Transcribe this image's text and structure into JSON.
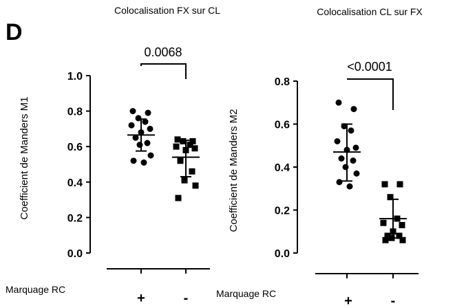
{
  "panel_letter": "D",
  "chart_data": [
    {
      "type": "scatter",
      "title": "Colocalisation FX sur CL",
      "ylabel": "Coefficient de Manders M1",
      "ylim": [
        0.0,
        1.0
      ],
      "yticks": [
        0.0,
        0.2,
        0.4,
        0.6,
        0.8,
        1.0
      ],
      "ytick_labels": [
        "0.0",
        "0.2",
        "0.4",
        "0.6",
        "0.8",
        "1.0"
      ],
      "row_label": "Marquage RC",
      "categories": [
        "+",
        "-"
      ],
      "p_value": "0.0068",
      "groups": [
        {
          "category": "+",
          "marker": "circle",
          "mean": 0.665,
          "sd_low": 0.575,
          "sd_high": 0.755,
          "values": [
            0.8,
            0.79,
            0.76,
            0.74,
            0.72,
            0.7,
            0.68,
            0.65,
            0.62,
            0.61,
            0.55,
            0.52,
            0.51
          ]
        },
        {
          "category": "-",
          "marker": "square",
          "mean": 0.54,
          "sd_low": 0.43,
          "sd_high": 0.635,
          "values": [
            0.64,
            0.63,
            0.63,
            0.61,
            0.6,
            0.59,
            0.58,
            0.52,
            0.46,
            0.41,
            0.38,
            0.31
          ]
        }
      ]
    },
    {
      "type": "scatter",
      "title": "Colocalisation CL sur FX",
      "ylabel": "Coefficient de Manders M2",
      "ylim": [
        0.0,
        0.8
      ],
      "yticks": [
        0.0,
        0.2,
        0.4,
        0.6,
        0.8
      ],
      "ytick_labels": [
        "0.0",
        "0.2",
        "0.4",
        "0.6",
        "0.8"
      ],
      "row_label": "Marquage RC",
      "categories": [
        "+",
        "-"
      ],
      "p_value": "<0.0001",
      "groups": [
        {
          "category": "+",
          "marker": "circle",
          "mean": 0.47,
          "sd_low": 0.335,
          "sd_high": 0.6,
          "values": [
            0.7,
            0.67,
            0.59,
            0.57,
            0.52,
            0.49,
            0.48,
            0.44,
            0.43,
            0.4,
            0.37,
            0.33,
            0.31
          ]
        },
        {
          "category": "-",
          "marker": "square",
          "mean": 0.16,
          "sd_low": 0.07,
          "sd_high": 0.25,
          "values": [
            0.32,
            0.32,
            0.26,
            0.16,
            0.14,
            0.13,
            0.1,
            0.08,
            0.08,
            0.07,
            0.06,
            0.06
          ]
        }
      ]
    }
  ]
}
